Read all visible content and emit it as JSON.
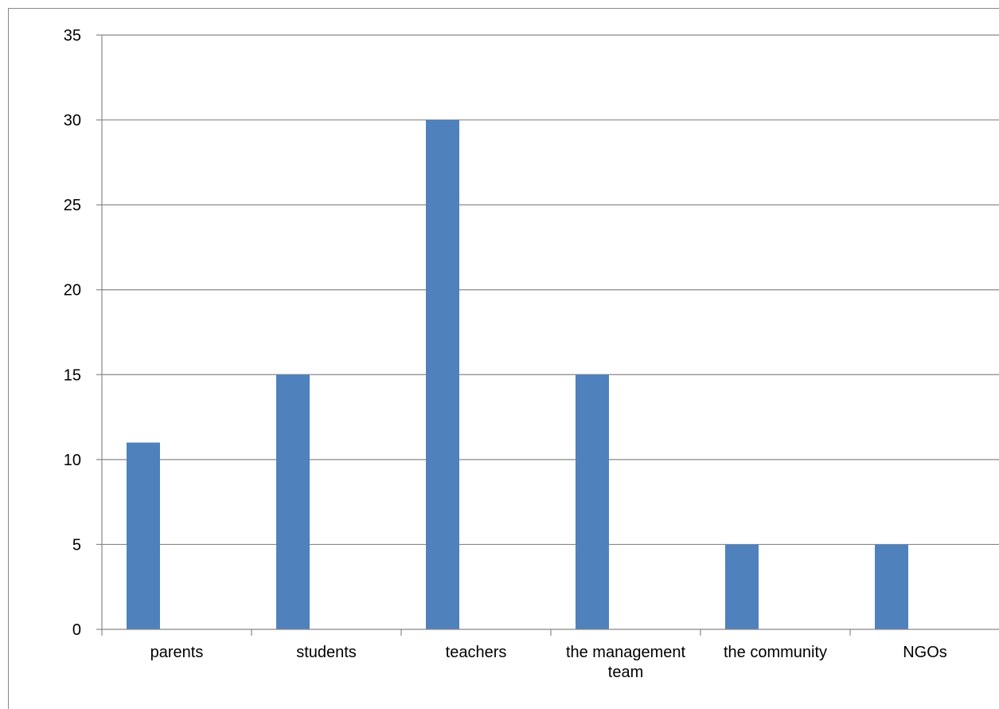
{
  "chart_data": {
    "type": "bar",
    "categories": [
      [
        "parents"
      ],
      [
        "students"
      ],
      [
        "teachers"
      ],
      [
        "the management",
        "team"
      ],
      [
        "the community"
      ],
      [
        "NGOs"
      ]
    ],
    "values": [
      11,
      15,
      30,
      15,
      5,
      5
    ],
    "ylim": [
      0,
      35
    ],
    "yticks": [
      0,
      5,
      10,
      15,
      20,
      25,
      30,
      35
    ],
    "grid": true,
    "legend": "none",
    "bar_color": "#4f81bd",
    "grid_color": "#888888",
    "title": "",
    "xlabel": "",
    "ylabel": ""
  }
}
